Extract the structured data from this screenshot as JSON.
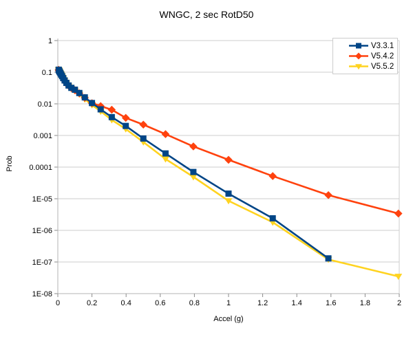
{
  "window": {
    "background": "#ffffff"
  },
  "chart_data": {
    "type": "line",
    "title": "WNGC, 2 sec RotD50",
    "xlabel": "Accel (g)",
    "ylabel": "Prob",
    "x_scale": "linear",
    "y_scale": "log",
    "xlim": [
      0,
      2
    ],
    "ylim": [
      1e-08,
      1
    ],
    "grid": "horizontal-only",
    "legend_position": "top-right-inside",
    "x_ticks": [
      0,
      0.2,
      0.4,
      0.6,
      0.8,
      1,
      1.2,
      1.4,
      1.6,
      1.8,
      2
    ],
    "x_tick_labels": [
      "0",
      "0.2",
      "0.4",
      "0.6",
      "0.8",
      "1",
      "1.2",
      "1.4",
      "1.6",
      "1.8",
      "2"
    ],
    "y_tick_labels": [
      "1",
      "0.1",
      "0.01",
      "0.001",
      "0.0001",
      "1E-05",
      "1E-06",
      "1E-07",
      "1E-08"
    ],
    "x": [
      0.005,
      0.0063,
      0.0079,
      0.01,
      0.0126,
      0.0158,
      0.02,
      0.0251,
      0.0316,
      0.0398,
      0.0501,
      0.0631,
      0.0794,
      0.1,
      0.126,
      0.158,
      0.2,
      0.251,
      0.316,
      0.398,
      0.501,
      0.631,
      0.794,
      1.0,
      1.259,
      1.585,
      1.995
    ],
    "series": [
      {
        "name": "V3.3.1",
        "color": "#004586",
        "marker": "square",
        "values": [
          0.12,
          0.115,
          0.11,
          0.105,
          0.099,
          0.092,
          0.084,
          0.075,
          0.065,
          0.055,
          0.046,
          0.038,
          0.032,
          0.028,
          0.022,
          0.016,
          0.0106,
          0.0067,
          0.0038,
          0.002,
          0.0008,
          0.00027,
          7e-05,
          1.45e-05,
          2.4e-06,
          1.3e-07,
          null
        ]
      },
      {
        "name": "V5.4.2",
        "color": "#FF420E",
        "marker": "diamond",
        "values": [
          0.119,
          0.114,
          0.109,
          0.104,
          0.098,
          0.091,
          0.083,
          0.074,
          0.064,
          0.054,
          0.0455,
          0.0375,
          0.0315,
          0.027,
          0.0215,
          0.0155,
          0.0105,
          0.0085,
          0.0065,
          0.0036,
          0.0022,
          0.0011,
          0.00045,
          0.00017,
          5.2e-05,
          1.3e-05,
          3.4e-06
        ]
      },
      {
        "name": "V5.5.2",
        "color": "#FFD320",
        "marker": "triangle-down",
        "values": [
          0.119,
          0.114,
          0.109,
          0.104,
          0.098,
          0.091,
          0.083,
          0.074,
          0.064,
          0.0535,
          0.044,
          0.036,
          0.03,
          0.026,
          0.02,
          0.014,
          0.0092,
          0.0058,
          0.0031,
          0.0016,
          0.00062,
          0.00018,
          4.9e-05,
          8.6e-06,
          1.8e-06,
          1.2e-07,
          3.5e-08
        ]
      }
    ],
    "colors": {
      "gridline": "#cccccc",
      "axis": "#b3b3b3",
      "tick": "#8a8a8a",
      "text": "#000000"
    }
  }
}
